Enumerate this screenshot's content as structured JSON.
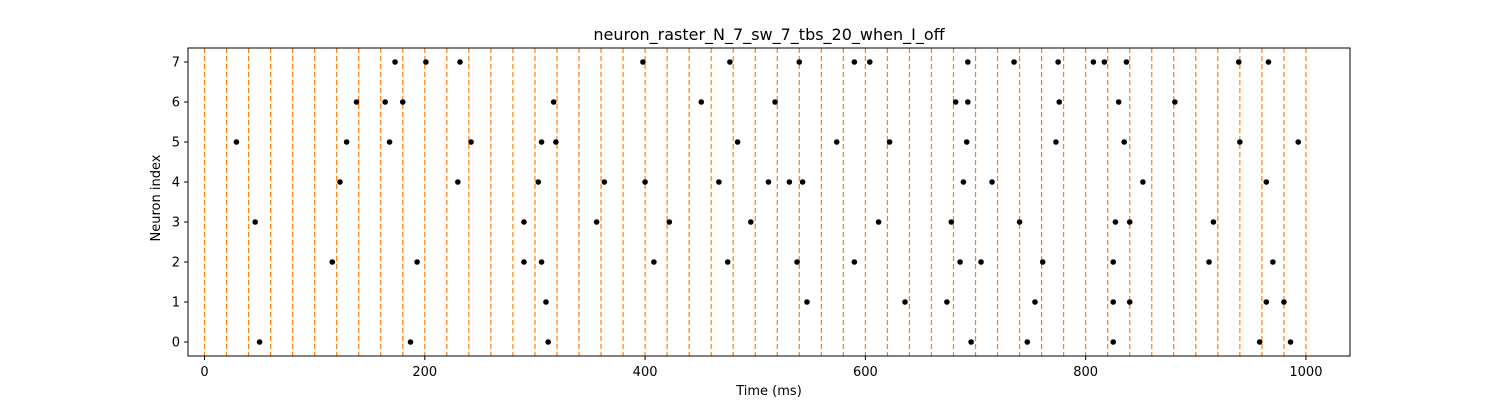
{
  "chart_data": {
    "type": "scatter",
    "title": "neuron_raster_N_7_sw_7_tbs_20_when_I_off",
    "xlabel": "Time (ms)",
    "ylabel": "Neuron index",
    "xlim": [
      -15,
      1040
    ],
    "ylim": [
      -0.35,
      7.35
    ],
    "xticks": [
      0,
      200,
      400,
      600,
      800,
      1000
    ],
    "yticks": [
      0,
      1,
      2,
      3,
      4,
      5,
      6,
      7
    ],
    "grid": false,
    "legend": "none",
    "marker_color": "#000000",
    "vline_color": "#ff7f0e",
    "time_bin_lines": [
      0,
      20,
      40,
      60,
      80,
      100,
      120,
      140,
      160,
      180,
      200,
      220,
      240,
      260,
      280,
      300,
      320,
      340,
      360,
      380,
      400,
      420,
      440,
      460,
      480,
      500,
      520,
      540,
      560,
      580,
      600,
      620,
      640,
      660,
      680,
      700,
      720,
      740,
      760,
      780,
      800,
      820,
      840,
      860,
      880,
      900,
      920,
      940,
      960,
      980,
      1000
    ],
    "spikes": [
      {
        "neuron": 0,
        "times": [
          50,
          187,
          312,
          696,
          747,
          825,
          958,
          986
        ]
      },
      {
        "neuron": 1,
        "times": [
          310,
          547,
          636,
          674,
          754,
          825,
          840,
          964,
          980
        ]
      },
      {
        "neuron": 2,
        "times": [
          116,
          193,
          290,
          306,
          408,
          475,
          538,
          590,
          686,
          705,
          761,
          825,
          912,
          970
        ]
      },
      {
        "neuron": 3,
        "times": [
          46,
          290,
          356,
          422,
          496,
          612,
          678,
          740,
          827,
          840,
          916
        ]
      },
      {
        "neuron": 4,
        "times": [
          123,
          230,
          303,
          363,
          400,
          467,
          512,
          531,
          543,
          689,
          715,
          852,
          964
        ]
      },
      {
        "neuron": 5,
        "times": [
          29,
          129,
          168,
          242,
          306,
          319,
          484,
          574,
          622,
          692,
          773,
          835,
          940,
          993
        ]
      },
      {
        "neuron": 6,
        "times": [
          138,
          164,
          180,
          317,
          451,
          518,
          682,
          693,
          776,
          830,
          881
        ]
      },
      {
        "neuron": 7,
        "times": [
          173,
          201,
          232,
          398,
          477,
          540,
          590,
          604,
          693,
          735,
          775,
          807,
          817,
          837,
          939,
          966
        ]
      }
    ]
  }
}
